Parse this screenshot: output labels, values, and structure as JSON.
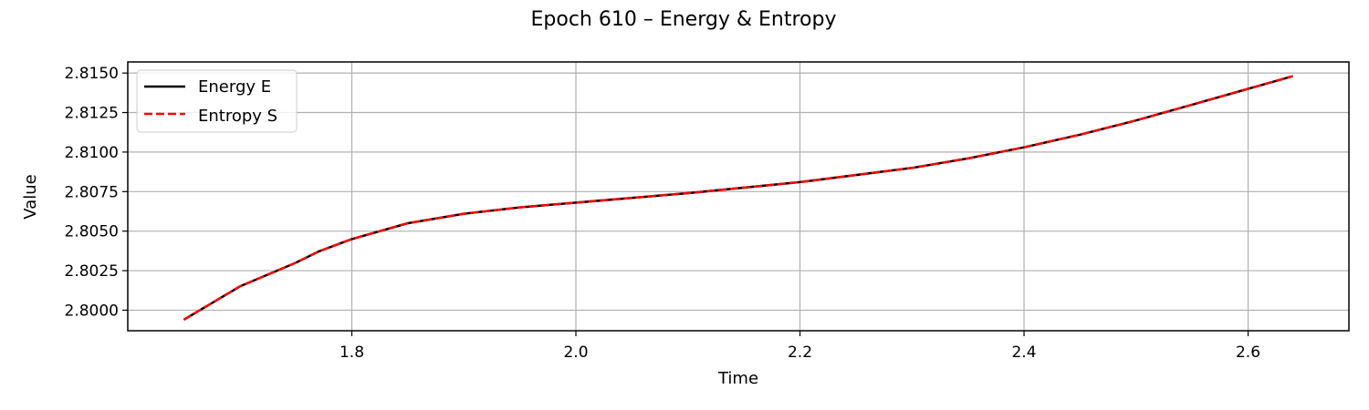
{
  "chart_data": {
    "type": "line",
    "title": "Epoch 610 – Energy & Entropy",
    "xlabel": "Time",
    "ylabel": "Value",
    "xlim": [
      1.6,
      2.69
    ],
    "ylim": [
      2.7987,
      2.8157
    ],
    "xticks": [
      1.8,
      2.0,
      2.2,
      2.4,
      2.6
    ],
    "xtick_labels": [
      "1.8",
      "2.0",
      "2.2",
      "2.4",
      "2.6"
    ],
    "yticks": [
      2.8,
      2.8025,
      2.805,
      2.8075,
      2.81,
      2.8125,
      2.815
    ],
    "ytick_labels": [
      "2.8000",
      "2.8025",
      "2.8050",
      "2.8075",
      "2.8100",
      "2.8125",
      "2.8150"
    ],
    "grid": true,
    "legend_position": "top-left",
    "x": [
      1.65,
      1.7,
      1.75,
      1.77,
      1.8,
      1.85,
      1.9,
      1.95,
      2.0,
      2.1,
      2.2,
      2.3,
      2.35,
      2.4,
      2.45,
      2.5,
      2.55,
      2.6,
      2.64
    ],
    "series": [
      {
        "name": "Energy E",
        "color": "#000000",
        "style": "solid",
        "values": [
          2.7994,
          2.8015,
          2.803,
          2.8037,
          2.8045,
          2.8055,
          2.8061,
          2.8065,
          2.8068,
          2.8074,
          2.8081,
          2.809,
          2.8096,
          2.8103,
          2.8111,
          2.812,
          2.813,
          2.814,
          2.8148
        ]
      },
      {
        "name": "Entropy S",
        "color": "#ff0000",
        "style": "dashed",
        "values": [
          2.7994,
          2.8015,
          2.803,
          2.8037,
          2.8045,
          2.8055,
          2.8061,
          2.8065,
          2.8068,
          2.8074,
          2.8081,
          2.809,
          2.8096,
          2.8103,
          2.8111,
          2.812,
          2.813,
          2.814,
          2.8148
        ]
      }
    ]
  }
}
